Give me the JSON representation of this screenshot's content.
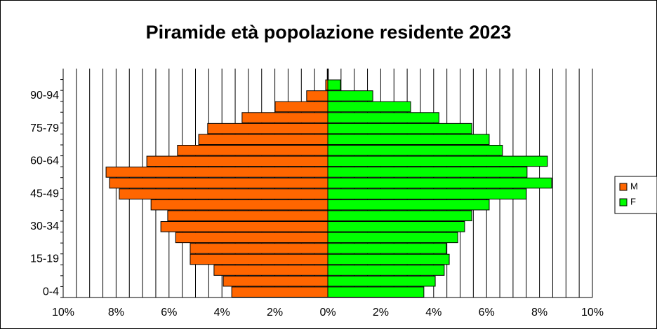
{
  "chart_data": {
    "type": "pyramid",
    "title": "Piramide età popolazione residente 2023",
    "categories": [
      "0-4",
      null,
      null,
      "15-19",
      null,
      null,
      "30-34",
      null,
      null,
      "45-49",
      null,
      null,
      "60-64",
      null,
      null,
      "75-79",
      null,
      null,
      "90-94",
      null,
      null
    ],
    "series": [
      {
        "name": "M",
        "color": "#ff6600",
        "values": [
          -3.63,
          -3.95,
          -4.3,
          -5.2,
          -5.2,
          -5.75,
          -6.31,
          -6.05,
          -6.68,
          -7.88,
          -8.25,
          -8.38,
          -6.84,
          -5.68,
          -4.88,
          -4.54,
          -3.24,
          -1.99,
          -0.8,
          -0.08,
          -0.02
        ]
      },
      {
        "name": "F",
        "color": "#00ff00",
        "values": [
          3.63,
          4.06,
          4.4,
          4.59,
          4.48,
          4.91,
          5.17,
          5.44,
          6.1,
          7.5,
          8.46,
          7.53,
          8.3,
          6.6,
          6.1,
          5.44,
          4.2,
          3.13,
          1.7,
          0.48,
          0.02
        ]
      }
    ],
    "xlim": [
      -10,
      10
    ],
    "xticks": [
      {
        "value": -10,
        "label": "10%"
      },
      {
        "value": -8,
        "label": "8%"
      },
      {
        "value": -6,
        "label": "6%"
      },
      {
        "value": -4,
        "label": "4%"
      },
      {
        "value": -2,
        "label": "2%"
      },
      {
        "value": 0,
        "label": "0%"
      },
      {
        "value": 2,
        "label": "2%"
      },
      {
        "value": 4,
        "label": "4%"
      },
      {
        "value": 6,
        "label": "6%"
      },
      {
        "value": 8,
        "label": "8%"
      },
      {
        "value": 10,
        "label": "10%"
      }
    ],
    "grid": true,
    "legend": "right"
  }
}
